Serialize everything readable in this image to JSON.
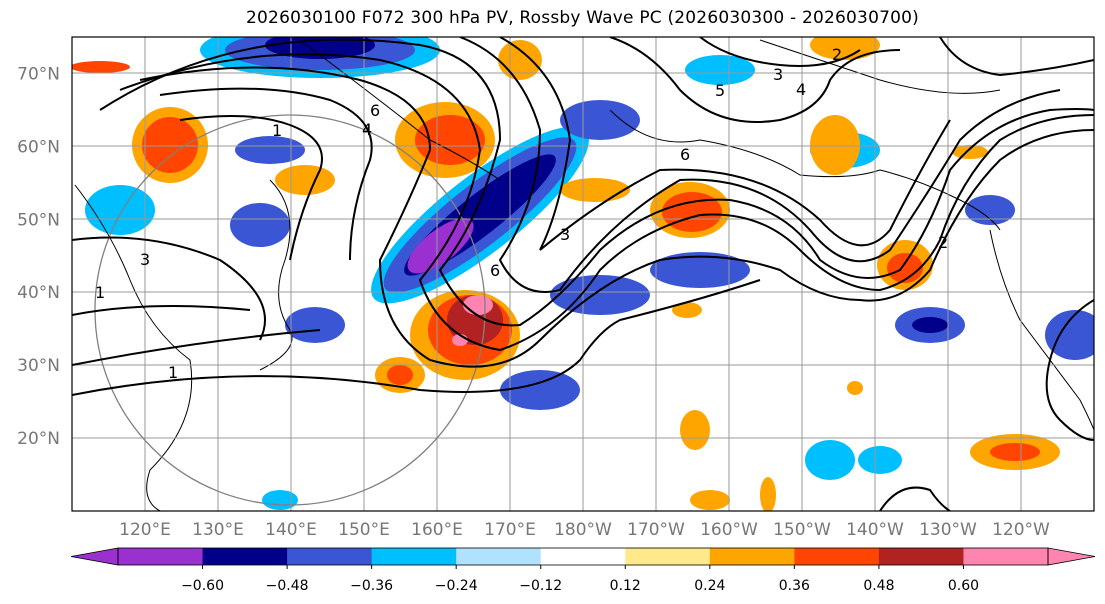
{
  "title": "2026030100 F072 300 hPa PV, Rossby Wave PC (2026030300 - 2026030700)",
  "map": {
    "lat_labels": [
      "70°N",
      "60°N",
      "50°N",
      "40°N",
      "30°N",
      "20°N"
    ],
    "lon_labels": [
      "120°E",
      "130°E",
      "140°E",
      "150°E",
      "160°E",
      "170°E",
      "180°W",
      "170°W",
      "160°W",
      "150°W",
      "140°W",
      "130°W",
      "120°W"
    ],
    "lat_values": [
      70,
      60,
      50,
      40,
      30,
      20
    ],
    "lon_values": [
      120,
      130,
      140,
      150,
      160,
      170,
      180,
      190,
      200,
      210,
      220,
      230,
      240
    ],
    "contour_labels": [
      "6",
      "4",
      "3",
      "2",
      "1",
      "5",
      "6",
      "3",
      "4",
      "2",
      "1",
      "1",
      "3",
      "6"
    ],
    "field": "300 hPa PV",
    "shading": "Rossby Wave PC"
  },
  "colorbar": {
    "ticks": [
      "−0.60",
      "−0.48",
      "−0.36",
      "−0.24",
      "−0.12",
      "0.12",
      "0.24",
      "0.36",
      "0.48",
      "0.60"
    ],
    "levels": [
      -0.6,
      -0.48,
      -0.36,
      -0.24,
      -0.12,
      0.12,
      0.24,
      0.36,
      0.48,
      0.6
    ],
    "colors": [
      "#9b30d0",
      "#00008b",
      "#3a56d4",
      "#00bfff",
      "#b0e2ff",
      "#ffffff",
      "#ffe98a",
      "#ffa500",
      "#ff4500",
      "#b22222",
      "#ff85b0"
    ]
  }
}
